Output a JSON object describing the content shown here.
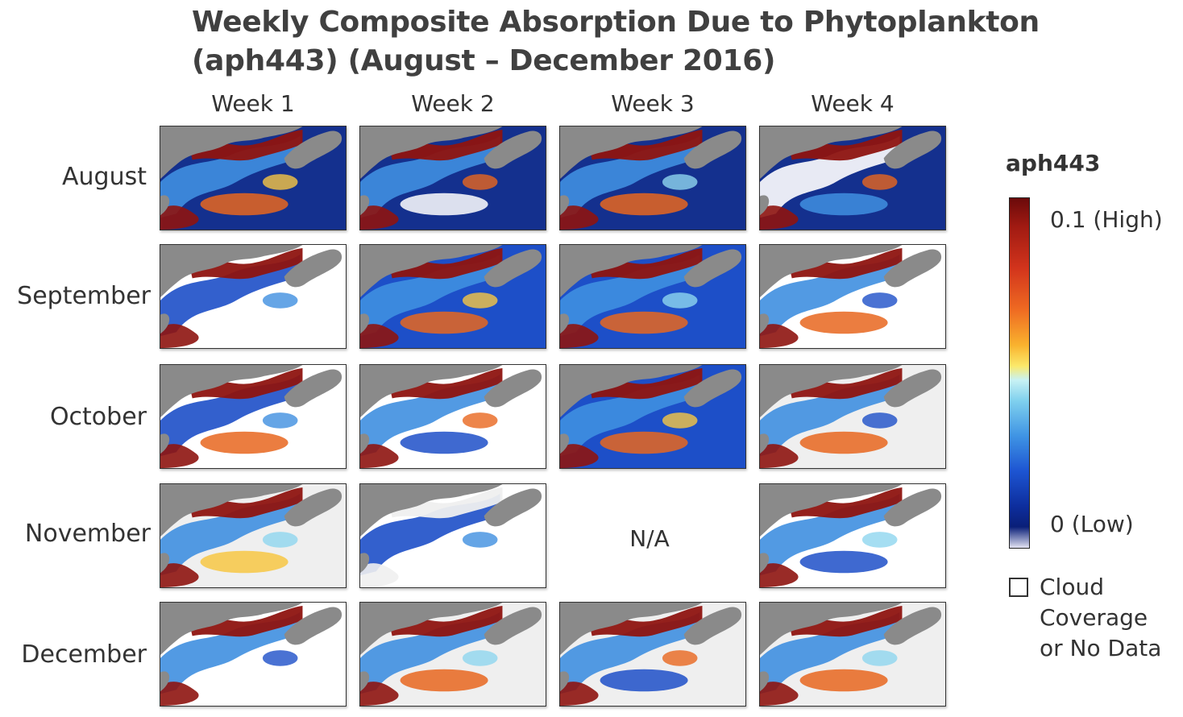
{
  "title": {
    "line1": "Weekly Composite Absorption Due to Phytoplankton",
    "line2": "(aph443) (August – December 2016)"
  },
  "columns": [
    "Week 1",
    "Week 2",
    "Week 3",
    "Week 4"
  ],
  "rows": [
    "August",
    "September",
    "October",
    "November",
    "December"
  ],
  "missing_panel": {
    "row": "November",
    "column": "Week 3",
    "label": "N/A"
  },
  "legend": {
    "title": "aph443",
    "high_label": "0.1 (High)",
    "low_label": "0 (Low)",
    "scale_max": 0.1,
    "scale_min": 0,
    "no_data_label_lines": [
      "Cloud",
      "Coverage",
      "or No Data"
    ],
    "no_data_color": "#ffffff",
    "land_color": "#8a8a8a",
    "colormap": [
      "#6b0a0a",
      "#d2341c",
      "#f9b22e",
      "#fbe96a",
      "#c8f2f4",
      "#3f94e4",
      "#0d2e9e",
      "#e2e2f2"
    ]
  }
}
